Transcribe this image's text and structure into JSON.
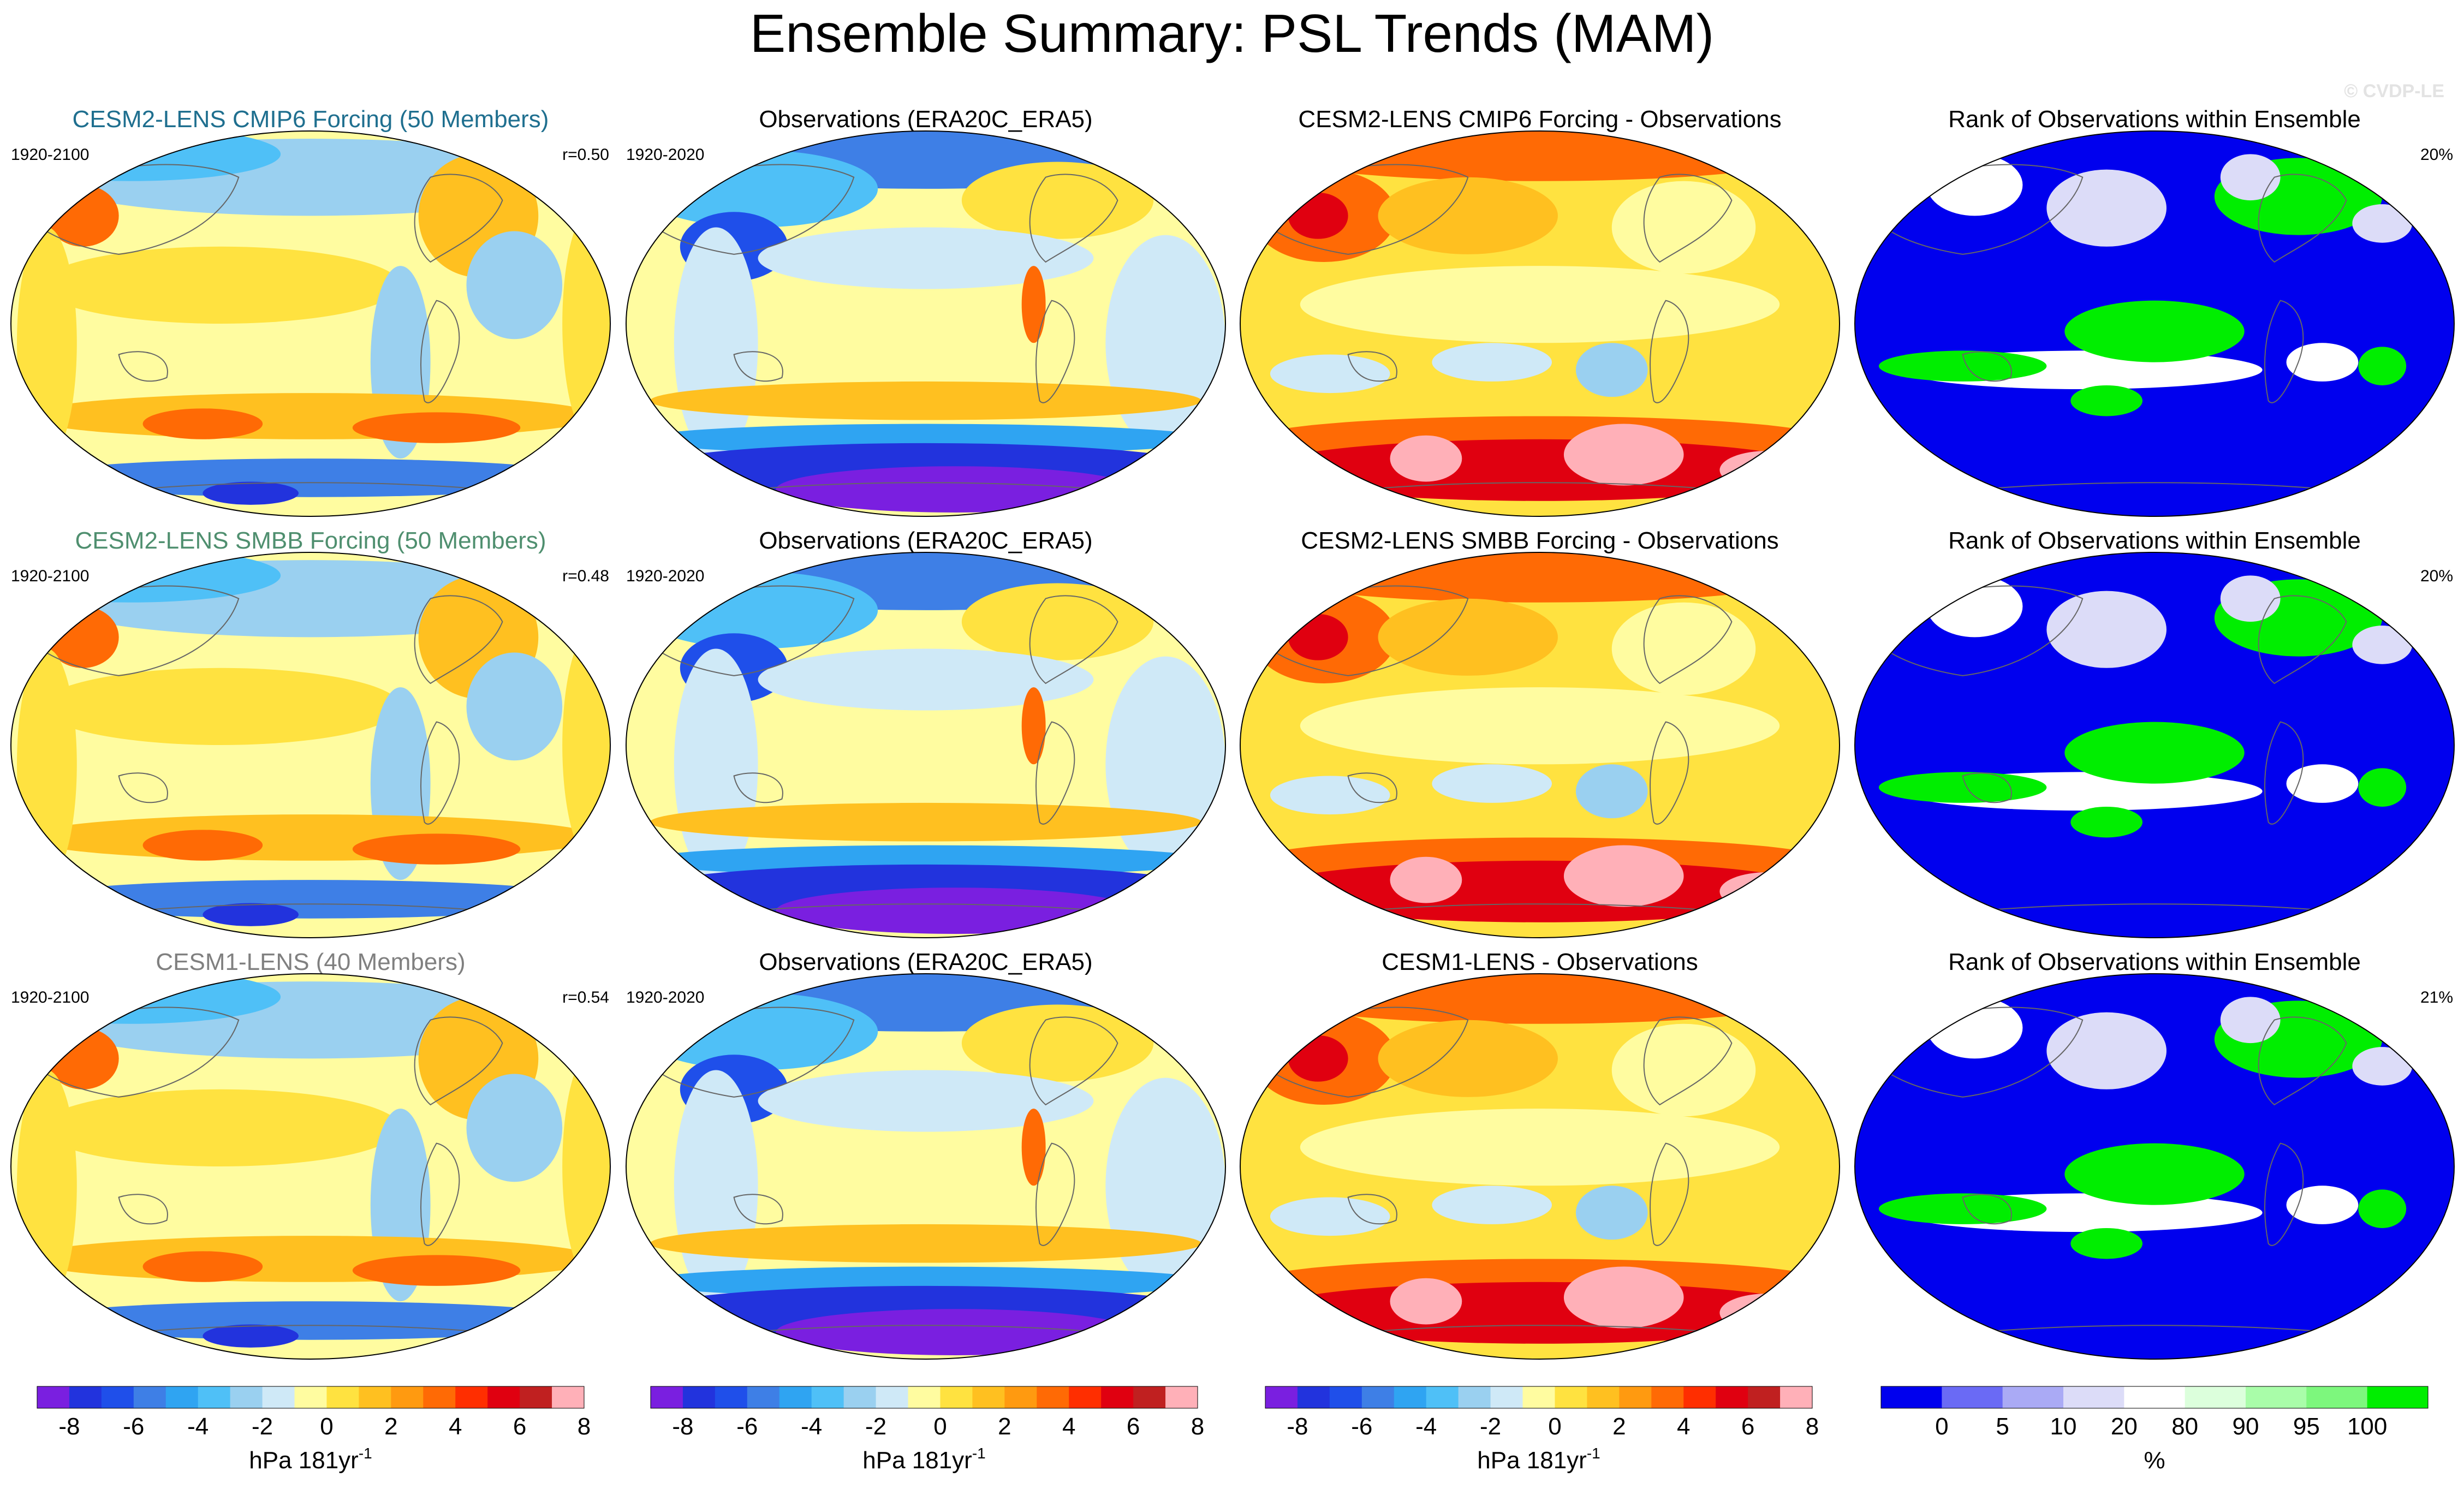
{
  "title": "Ensemble Summary: PSL Trends (MAM)",
  "watermark": "© CVDP-LE",
  "colors": {
    "psl_scale": [
      "#7a1fe0",
      "#2233dd",
      "#1f4fea",
      "#3e7fe6",
      "#2fa4f2",
      "#4fc0f7",
      "#9ad0f0",
      "#cfe9f7",
      "#fffca0",
      "#ffe240",
      "#ffc020",
      "#ff9a10",
      "#ff6a05",
      "#ff2e00",
      "#e00010",
      "#c02020",
      "#ffb0b8"
    ],
    "rank_scale": [
      "#0000ee",
      "#6a6af5",
      "#aaaaf5",
      "#dcdcf8",
      "#ffffff",
      "#dcffdc",
      "#a9fda9",
      "#7df77d",
      "#00ee00"
    ],
    "panel_title_cmip6": "#1f6f8f",
    "panel_title_smbb": "#4f8f6f",
    "panel_title_cesm1": "#808080",
    "land_outline": "#666666"
  },
  "rows": [
    {
      "panels": [
        {
          "title": "CESM2-LENS CMIP6 Forcing (50 Members)",
          "left": "1920-2100",
          "right": "r=0.50",
          "type": "model",
          "title_color": "cmip6"
        },
        {
          "title": "Observations (ERA20C_ERA5)",
          "left": "1920-2020",
          "right": "",
          "type": "obs"
        },
        {
          "title": "CESM2-LENS CMIP6 Forcing - Observations",
          "left": "",
          "right": "",
          "type": "diff"
        },
        {
          "title": "Rank of Observations within Ensemble",
          "left": "",
          "right": "20%",
          "type": "rank"
        }
      ]
    },
    {
      "panels": [
        {
          "title": "CESM2-LENS SMBB Forcing (50 Members)",
          "left": "1920-2100",
          "right": "r=0.48",
          "type": "model",
          "title_color": "smbb"
        },
        {
          "title": "Observations (ERA20C_ERA5)",
          "left": "1920-2020",
          "right": "",
          "type": "obs"
        },
        {
          "title": "CESM2-LENS SMBB Forcing - Observations",
          "left": "",
          "right": "",
          "type": "diff"
        },
        {
          "title": "Rank of Observations within Ensemble",
          "left": "",
          "right": "20%",
          "type": "rank"
        }
      ]
    },
    {
      "panels": [
        {
          "title": "CESM1-LENS (40 Members)",
          "left": "1920-2100",
          "right": "r=0.54",
          "type": "model",
          "title_color": "cesm1"
        },
        {
          "title": "Observations (ERA20C_ERA5)",
          "left": "1920-2020",
          "right": "",
          "type": "obs"
        },
        {
          "title": "CESM1-LENS - Observations",
          "left": "",
          "right": "",
          "type": "diff"
        },
        {
          "title": "Rank of Observations within Ensemble",
          "left": "",
          "right": "21%",
          "type": "rank"
        }
      ]
    }
  ],
  "colorbars": [
    {
      "ticks": [
        "-8",
        "-6",
        "-4",
        "-2",
        "0",
        "2",
        "4",
        "6",
        "8"
      ],
      "unit": "hPa 181yr",
      "unit_sup": "-1",
      "kind": "psl"
    },
    {
      "ticks": [
        "-8",
        "-6",
        "-4",
        "-2",
        "0",
        "2",
        "4",
        "6",
        "8"
      ],
      "unit": "hPa 181yr",
      "unit_sup": "-1",
      "kind": "psl"
    },
    {
      "ticks": [
        "-8",
        "-6",
        "-4",
        "-2",
        "0",
        "2",
        "4",
        "6",
        "8"
      ],
      "unit": "hPa 181yr",
      "unit_sup": "-1",
      "kind": "psl"
    },
    {
      "ticks": [
        "0",
        "5",
        "10",
        "20",
        "80",
        "90",
        "95",
        "100"
      ],
      "unit": "%",
      "unit_sup": "",
      "kind": "rank"
    }
  ],
  "chart_data": {
    "type": "heatmap",
    "title": "Ensemble Summary: PSL Trends (MAM)",
    "projection": "Robinson (global)",
    "psl_levels": [
      -8,
      -7,
      -6,
      -5,
      -4,
      -3,
      -2,
      -1,
      0,
      1,
      2,
      3,
      4,
      5,
      6,
      7,
      8
    ],
    "psl_unit": "hPa 181yr^-1",
    "rank_levels": [
      0,
      5,
      10,
      20,
      80,
      90,
      95,
      100
    ],
    "rank_unit": "%",
    "pattern_correlations": {
      "CESM2-LENS CMIP6 Forcing (50 Members)": 0.5,
      "CESM2-LENS SMBB Forcing (50 Members)": 0.48,
      "CESM1-LENS (40 Members)": 0.54
    },
    "rank_percent_outside": [
      20,
      20,
      21
    ]
  }
}
